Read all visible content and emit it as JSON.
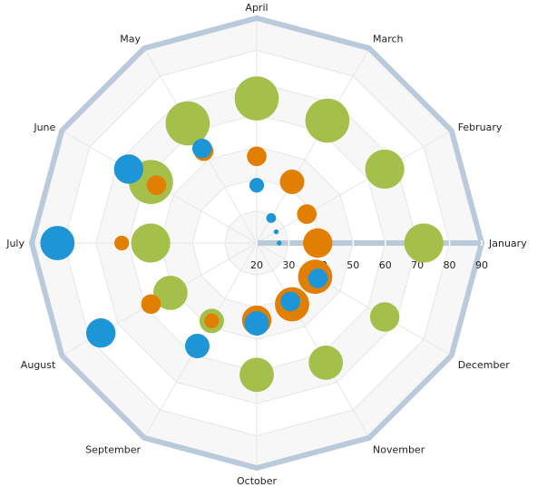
{
  "chart_data": {
    "type": "polar-bubble",
    "categories": [
      "January",
      "February",
      "March",
      "April",
      "May",
      "June",
      "July",
      "August",
      "September",
      "October",
      "November",
      "December"
    ],
    "radial_axis": {
      "min": 20,
      "max": 90,
      "ticks": [
        20,
        30,
        40,
        50,
        60,
        70,
        80,
        90
      ]
    },
    "series": [
      {
        "color": "#a5bf4b",
        "points": [
          {
            "category": "January",
            "value": 72,
            "size": 8
          },
          {
            "category": "February",
            "value": 66,
            "size": 8
          },
          {
            "category": "March",
            "value": 64,
            "size": 9
          },
          {
            "category": "April",
            "value": 65,
            "size": 9
          },
          {
            "category": "May",
            "value": 63,
            "size": 9
          },
          {
            "category": "June",
            "value": 58,
            "size": 9
          },
          {
            "category": "July",
            "value": 53,
            "size": 8
          },
          {
            "category": "August",
            "value": 51,
            "size": 7
          },
          {
            "category": "September",
            "value": 48,
            "size": 5
          },
          {
            "category": "October",
            "value": 61,
            "size": 7
          },
          {
            "category": "November",
            "value": 63,
            "size": 7
          },
          {
            "category": "December",
            "value": 66,
            "size": 6
          }
        ]
      },
      {
        "color": "#e17f02",
        "points": [
          {
            "category": "January",
            "value": 39,
            "size": 6
          },
          {
            "category": "February",
            "value": 38,
            "size": 4
          },
          {
            "category": "March",
            "value": 42,
            "size": 5
          },
          {
            "category": "April",
            "value": 47,
            "size": 4
          },
          {
            "category": "May",
            "value": 53,
            "size": 4
          },
          {
            "category": "June",
            "value": 56,
            "size": 4
          },
          {
            "category": "July",
            "value": 62,
            "size": 3
          },
          {
            "category": "August",
            "value": 58,
            "size": 4
          },
          {
            "category": "September",
            "value": 48,
            "size": 3
          },
          {
            "category": "October",
            "value": 44,
            "size": 6
          },
          {
            "category": "November",
            "value": 42,
            "size": 7
          },
          {
            "category": "December",
            "value": 41,
            "size": 7
          }
        ]
      },
      {
        "color": "#1e95d7",
        "points": [
          {
            "category": "January",
            "value": 27,
            "size": 1
          },
          {
            "category": "February",
            "value": 27,
            "size": 1
          },
          {
            "category": "March",
            "value": 29,
            "size": 2
          },
          {
            "category": "April",
            "value": 38,
            "size": 3
          },
          {
            "category": "May",
            "value": 54,
            "size": 4
          },
          {
            "category": "June",
            "value": 66,
            "size": 6
          },
          {
            "category": "July",
            "value": 82,
            "size": 7
          },
          {
            "category": "August",
            "value": 76,
            "size": 6
          },
          {
            "category": "September",
            "value": 57,
            "size": 5
          },
          {
            "category": "October",
            "value": 45,
            "size": 5
          },
          {
            "category": "November",
            "value": 41,
            "size": 4
          },
          {
            "category": "December",
            "value": 42,
            "size": 4
          }
        ]
      }
    ]
  }
}
